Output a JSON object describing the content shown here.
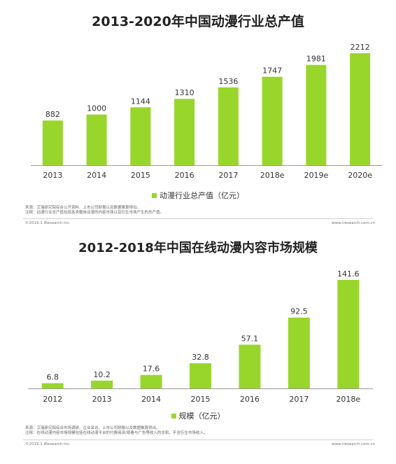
{
  "colors": {
    "bar": "#99d62b",
    "axis": "#999999"
  },
  "charts": [
    {
      "legend": "动漫行业总产值（亿元）",
      "notes": [
        "来源：艾瑞研究院综合公开资料、上市公司财报以及数据推算得出。",
        "注释：动漫行业总产值包括各类载体动漫的内容市场以及衍生市场产生的总产值。"
      ],
      "footer_left": "©2019.1 iResearch Inc.",
      "footer_right": "www.iresearch.com.cn"
    },
    {
      "legend": "规模（亿元）",
      "notes": [
        "来源：艾瑞研究院综合市场调研、企业采访、上市公司财报以及数据推算得出。",
        "注释：在线动漫内容市场规模包括在线动漫平台的付费阅读/观看与广告等收入的总和，不含衍生市场收入。"
      ],
      "footer_left": "©2019.1 iResearch Inc.",
      "footer_right": "www.iresearch.com.cn"
    }
  ],
  "chart_data": [
    {
      "type": "bar",
      "title": "2013-2020年中国动漫行业总产值",
      "categories": [
        "2013",
        "2014",
        "2015",
        "2016",
        "2017",
        "2018e",
        "2019e",
        "2020e"
      ],
      "series": [
        {
          "name": "动漫行业总产值（亿元）",
          "values": [
            882,
            1000,
            1144,
            1310,
            1536,
            1747,
            1981,
            2212
          ]
        }
      ],
      "xlabel": "",
      "ylabel": "",
      "ylim": [
        0,
        2212
      ],
      "grid": false,
      "legend_position": "bottom"
    },
    {
      "type": "bar",
      "title": "2012-2018年中国在线动漫内容市场规模",
      "categories": [
        "2012",
        "2013",
        "2014",
        "2015",
        "2016",
        "2017",
        "2018e"
      ],
      "series": [
        {
          "name": "规模（亿元）",
          "values": [
            6.8,
            10.2,
            17.6,
            32.8,
            57.1,
            92.5,
            141.6
          ]
        }
      ],
      "xlabel": "",
      "ylabel": "",
      "ylim": [
        0,
        141.6
      ],
      "grid": false,
      "legend_position": "bottom"
    }
  ]
}
